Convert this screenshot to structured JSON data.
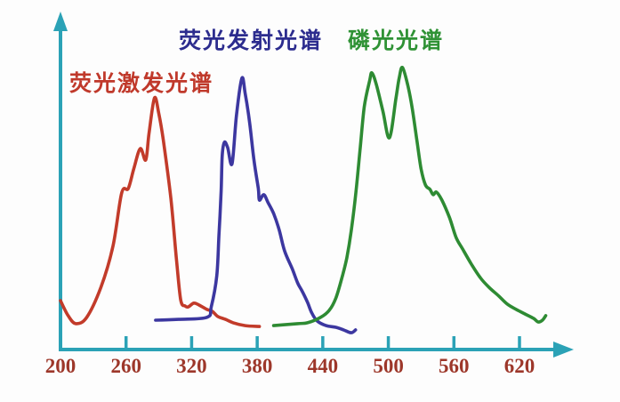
{
  "chart_data": {
    "type": "line",
    "title": "",
    "xlabel": "",
    "ylabel": "",
    "grid": false,
    "x_axis": {
      "range": [
        200,
        660
      ],
      "ticks": [
        200,
        260,
        320,
        380,
        440,
        500,
        560,
        620
      ],
      "tick_label_color": "#9d372a",
      "has_arrow": true
    },
    "y_axis": {
      "range": [
        0,
        113
      ],
      "ticks": [],
      "has_arrow": true
    },
    "axis_color": "#2ba2b6",
    "legend_position": "labels above each curve",
    "series": [
      {
        "name": "荧光激发光谱",
        "color": "#c23b2a",
        "label_color": "#c0392b",
        "points": [
          [
            200,
            17.2
          ],
          [
            207,
            11.9
          ],
          [
            214,
            9.1
          ],
          [
            224,
            11.3
          ],
          [
            237,
            21.9
          ],
          [
            248,
            36.3
          ],
          [
            256,
            55.0
          ],
          [
            262,
            56.6
          ],
          [
            267,
            63.4
          ],
          [
            273,
            70.6
          ],
          [
            278,
            66.6
          ],
          [
            281,
            75.9
          ],
          [
            286,
            88.4
          ],
          [
            290,
            82.8
          ],
          [
            294,
            73.8
          ],
          [
            301,
            53.1
          ],
          [
            306,
            32.2
          ],
          [
            310,
            17.5
          ],
          [
            314,
            15.3
          ],
          [
            317,
            15.0
          ],
          [
            322,
            16.3
          ],
          [
            327,
            15.6
          ],
          [
            334,
            14.1
          ],
          [
            339,
            13.4
          ],
          [
            344,
            11.6
          ],
          [
            351,
            10.6
          ],
          [
            358,
            9.4
          ],
          [
            369,
            8.4
          ],
          [
            382,
            8.1
          ]
        ]
      },
      {
        "name": "荧光发射光谱",
        "color": "#3c37a0",
        "label_color": "#2c2c8e",
        "points": [
          [
            287,
            10.3
          ],
          [
            308,
            10.6
          ],
          [
            334,
            11.3
          ],
          [
            338,
            15.0
          ],
          [
            343,
            25.9
          ],
          [
            345,
            40.0
          ],
          [
            347,
            55.6
          ],
          [
            348,
            68.1
          ],
          [
            350,
            72.8
          ],
          [
            353,
            70.9
          ],
          [
            357,
            65.3
          ],
          [
            361,
            82.2
          ],
          [
            366,
            95.3
          ],
          [
            369,
            90.0
          ],
          [
            373,
            80.0
          ],
          [
            377,
            66.6
          ],
          [
            381,
            56.6
          ],
          [
            382,
            52.5
          ],
          [
            386,
            54.4
          ],
          [
            390,
            51.6
          ],
          [
            395,
            47.8
          ],
          [
            400,
            42.2
          ],
          [
            405,
            34.7
          ],
          [
            412,
            28.4
          ],
          [
            417,
            23.4
          ],
          [
            421,
            20.6
          ],
          [
            426,
            16.6
          ],
          [
            430,
            12.8
          ],
          [
            435,
            10.0
          ],
          [
            443,
            8.4
          ],
          [
            452,
            7.8
          ],
          [
            459,
            6.9
          ],
          [
            466,
            5.9
          ],
          [
            470,
            6.9
          ]
        ]
      },
      {
        "name": "磷光光谱",
        "color": "#2e8b33",
        "label_color": "#2f9235",
        "points": [
          [
            395,
            8.4
          ],
          [
            417,
            9.1
          ],
          [
            426,
            9.4
          ],
          [
            438,
            11.3
          ],
          [
            446,
            13.8
          ],
          [
            452,
            18.1
          ],
          [
            458,
            25.9
          ],
          [
            462,
            32.2
          ],
          [
            466,
            41.6
          ],
          [
            470,
            54.1
          ],
          [
            474,
            69.7
          ],
          [
            478,
            85.3
          ],
          [
            483,
            94.7
          ],
          [
            485,
            97.2
          ],
          [
            489,
            93.1
          ],
          [
            495,
            83.8
          ],
          [
            501,
            74.4
          ],
          [
            507,
            88.4
          ],
          [
            510,
            95.6
          ],
          [
            513,
            99.1
          ],
          [
            518,
            92.5
          ],
          [
            522,
            84.4
          ],
          [
            526,
            73.8
          ],
          [
            530,
            63.4
          ],
          [
            534,
            57.8
          ],
          [
            538,
            56.3
          ],
          [
            541,
            54.4
          ],
          [
            544,
            55.3
          ],
          [
            549,
            52.5
          ],
          [
            556,
            46.3
          ],
          [
            562,
            39.4
          ],
          [
            568,
            35.3
          ],
          [
            576,
            30.0
          ],
          [
            584,
            25.3
          ],
          [
            592,
            21.9
          ],
          [
            601,
            18.8
          ],
          [
            609,
            15.9
          ],
          [
            617,
            14.1
          ],
          [
            625,
            12.5
          ],
          [
            633,
            10.9
          ],
          [
            637,
            9.7
          ],
          [
            641,
            10.3
          ],
          [
            644,
            11.9
          ]
        ]
      }
    ]
  }
}
